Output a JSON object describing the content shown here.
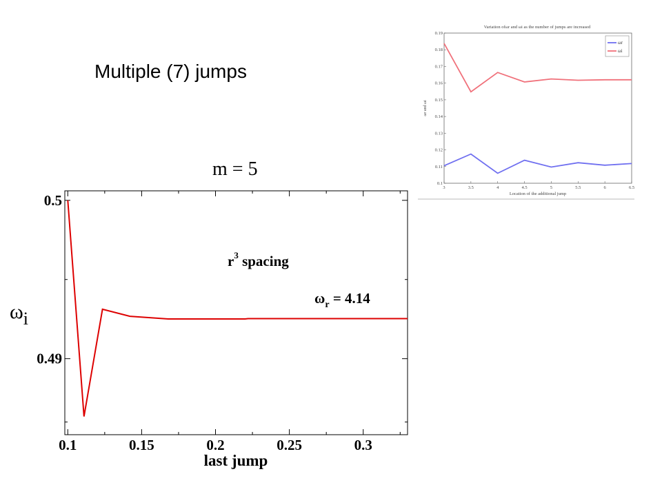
{
  "slide": {
    "title": "Multiple (7) jumps",
    "m_label": "m = 5"
  },
  "chart_data": [
    {
      "type": "line",
      "title": "",
      "xlabel": "last jump",
      "ylabel": "ω",
      "ylabel_sub": "i",
      "xlim": [
        0.098,
        0.33
      ],
      "ylim": [
        0.4852,
        0.5006
      ],
      "xticks": [
        0.1,
        0.15,
        0.2,
        0.25,
        0.3
      ],
      "xtick_labels": [
        "0.1",
        "0.15",
        "0.2",
        "0.25",
        "0.3"
      ],
      "yticks": [
        0.49,
        0.5
      ],
      "ytick_labels": [
        "0.49",
        "0.5"
      ],
      "grid": false,
      "annotations": {
        "spacing_main": "r",
        "spacing_sup": "3",
        "spacing_rest": " spacing",
        "omega_symbol": "ω",
        "omega_sub": "r",
        "omega_value": " = 4.14"
      },
      "series": [
        {
          "color": "#dd0000",
          "points": [
            [
              0.1,
              0.5
            ],
            [
              0.111,
              0.48635
            ],
            [
              0.1235,
              0.49312
            ],
            [
              0.142,
              0.49268
            ],
            [
              0.168,
              0.49251
            ],
            [
              0.2,
              0.49251
            ],
            [
              0.22,
              0.49251
            ],
            [
              0.222,
              0.49253
            ],
            [
              0.27,
              0.49253
            ],
            [
              0.33,
              0.49253
            ]
          ]
        }
      ]
    },
    {
      "type": "line",
      "title": "Variation ofωr and ωi as the number of jumps are increased",
      "xlabel": "Location of the additional jump",
      "ylabel": "ωr and ωi",
      "xlim": [
        3,
        6.5
      ],
      "ylim": [
        0.1,
        0.19
      ],
      "xticks": [
        3,
        3.5,
        4,
        4.5,
        5,
        5.5,
        6,
        6.5
      ],
      "xtick_labels": [
        "3",
        "3.5",
        "4",
        "4.5",
        "5",
        "5.5",
        "6",
        "6.5"
      ],
      "yticks": [
        0.1,
        0.11,
        0.12,
        0.13,
        0.14,
        0.15,
        0.16,
        0.17,
        0.18,
        0.19
      ],
      "ytick_labels": [
        "0.1",
        "0.11",
        "0.12",
        "0.13",
        "0.14",
        "0.15",
        "0.16",
        "0.17",
        "0.18",
        "0.19"
      ],
      "grid": false,
      "legend_position": "top-right",
      "series": [
        {
          "name": "ωr",
          "color": "#6f6ff0",
          "x": [
            3,
            3.5,
            4,
            4.5,
            5,
            5.5,
            6,
            6.5
          ],
          "values": [
            0.1105,
            0.1175,
            0.106,
            0.1138,
            0.1097,
            0.1123,
            0.1108,
            0.1118
          ]
        },
        {
          "name": "ωi",
          "color": "#f0707a",
          "x": [
            3,
            3.5,
            4,
            4.5,
            5,
            5.5,
            6,
            6.5
          ],
          "values": [
            0.1838,
            0.1548,
            0.1664,
            0.1607,
            0.1625,
            0.1617,
            0.162,
            0.162
          ]
        }
      ]
    }
  ]
}
